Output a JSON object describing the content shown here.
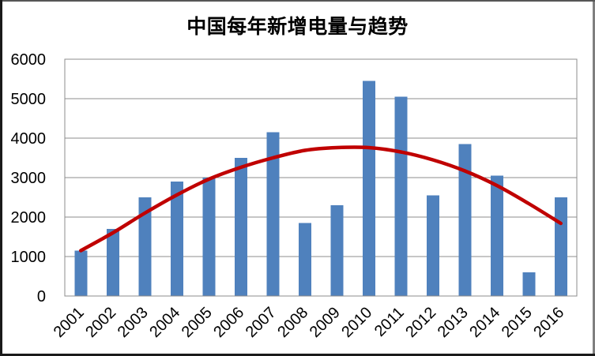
{
  "window": {
    "background": "#ffffff",
    "frame_border_color": "#1a1a1a"
  },
  "chart_data": {
    "type": "bar",
    "title": "中国每年新增电量与趋势",
    "xlabel": "",
    "ylabel": "",
    "categories": [
      "2001",
      "2002",
      "2003",
      "2004",
      "2005",
      "2006",
      "2007",
      "2008",
      "2009",
      "2010",
      "2011",
      "2012",
      "2013",
      "2014",
      "2015",
      "2016"
    ],
    "bars": {
      "color": "#4f81bd",
      "values": [
        1150,
        1700,
        2500,
        2900,
        3000,
        3500,
        4150,
        1850,
        2300,
        5450,
        5050,
        2550,
        3850,
        3050,
        600,
        2500
      ]
    },
    "trend_line": {
      "color": "#c00000",
      "width": 4.5,
      "values": [
        1150,
        1600,
        2100,
        2560,
        2960,
        3260,
        3500,
        3690,
        3760,
        3760,
        3650,
        3450,
        3170,
        2800,
        2340,
        1840
      ]
    },
    "ylim": [
      0,
      6000
    ],
    "y_ticks": [
      0,
      1000,
      2000,
      3000,
      4000,
      5000,
      6000
    ],
    "grid": true,
    "legend_position": "none",
    "gridline_color": "#8c8c8c",
    "plot_border_color": "#8c8c8c",
    "tick_label_color": "#000000",
    "tick_label_size": 20,
    "x_label_rotation": -45
  }
}
